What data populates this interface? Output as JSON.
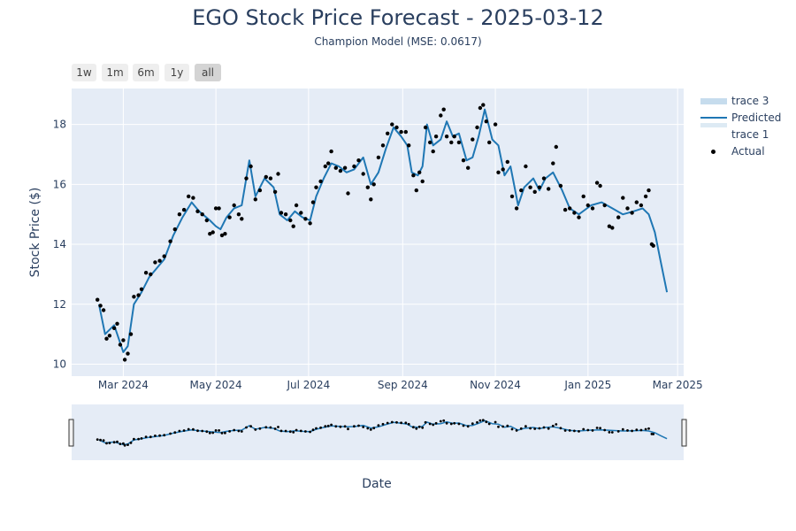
{
  "title": "EGO Stock Price Forecast - 2025-03-12",
  "subtitle": "Champion Model (MSE: 0.0617)",
  "range_buttons": [
    {
      "label": "1w",
      "active": false
    },
    {
      "label": "1m",
      "active": false
    },
    {
      "label": "6m",
      "active": false
    },
    {
      "label": "1y",
      "active": false
    },
    {
      "label": "all",
      "active": true
    }
  ],
  "legend": [
    {
      "label": "trace 3",
      "kind": "band"
    },
    {
      "label": "Predicted",
      "kind": "line"
    },
    {
      "label": "trace 1",
      "kind": "none"
    },
    {
      "label": "Actual",
      "kind": "marker"
    }
  ],
  "colors": {
    "plot_bg": "#e5ecf6",
    "predicted": "#1f77b4",
    "band": "#c6dced",
    "actual": "#000000",
    "grid": "#ffffff"
  },
  "chart_data": {
    "type": "line",
    "title": "EGO Stock Price Forecast - 2025-03-12",
    "xlabel": "Date",
    "ylabel": "Stock Price ($)",
    "xlim": [
      "2024-01-27",
      "2025-03-05"
    ],
    "ylim": [
      9.6,
      19.2
    ],
    "x_ticks": [
      {
        "date": "2024-03-01",
        "label": "Mar 2024"
      },
      {
        "date": "2024-05-01",
        "label": "May 2024"
      },
      {
        "date": "2024-07-01",
        "label": "Jul 2024"
      },
      {
        "date": "2024-09-01",
        "label": "Sep 2024"
      },
      {
        "date": "2024-11-01",
        "label": "Nov 2024"
      },
      {
        "date": "2025-01-01",
        "label": "Jan 2025"
      },
      {
        "date": "2025-03-01",
        "label": "Mar 2025"
      }
    ],
    "y_ticks": [
      10,
      12,
      14,
      16,
      18
    ],
    "grid": true,
    "legend_position": "top-right",
    "rangeslider": true,
    "series": [
      {
        "name": "Predicted",
        "points": [
          [
            "2024-02-14",
            12.0
          ],
          [
            "2024-02-18",
            11.0
          ],
          [
            "2024-02-24",
            11.3
          ],
          [
            "2024-03-01",
            10.4
          ],
          [
            "2024-03-04",
            10.6
          ],
          [
            "2024-03-08",
            12.0
          ],
          [
            "2024-03-13",
            12.4
          ],
          [
            "2024-03-18",
            12.9
          ],
          [
            "2024-03-23",
            13.2
          ],
          [
            "2024-03-28",
            13.5
          ],
          [
            "2024-04-03",
            14.3
          ],
          [
            "2024-04-09",
            14.9
          ],
          [
            "2024-04-15",
            15.4
          ],
          [
            "2024-04-20",
            15.1
          ],
          [
            "2024-04-27",
            14.8
          ],
          [
            "2024-05-01",
            14.6
          ],
          [
            "2024-05-04",
            14.5
          ],
          [
            "2024-05-08",
            14.9
          ],
          [
            "2024-05-13",
            15.2
          ],
          [
            "2024-05-18",
            15.3
          ],
          [
            "2024-05-23",
            16.8
          ],
          [
            "2024-05-27",
            15.6
          ],
          [
            "2024-06-02",
            16.2
          ],
          [
            "2024-06-08",
            15.9
          ],
          [
            "2024-06-12",
            15.0
          ],
          [
            "2024-06-17",
            14.8
          ],
          [
            "2024-06-22",
            15.1
          ],
          [
            "2024-06-27",
            14.9
          ],
          [
            "2024-07-02",
            14.8
          ],
          [
            "2024-07-06",
            15.6
          ],
          [
            "2024-07-11",
            16.2
          ],
          [
            "2024-07-16",
            16.7
          ],
          [
            "2024-07-21",
            16.6
          ],
          [
            "2024-07-26",
            16.4
          ],
          [
            "2024-07-31",
            16.5
          ],
          [
            "2024-08-06",
            16.9
          ],
          [
            "2024-08-11",
            16.0
          ],
          [
            "2024-08-16",
            16.4
          ],
          [
            "2024-08-21",
            17.2
          ],
          [
            "2024-08-26",
            17.9
          ],
          [
            "2024-08-31",
            17.6
          ],
          [
            "2024-09-04",
            17.3
          ],
          [
            "2024-09-07",
            16.4
          ],
          [
            "2024-09-11",
            16.3
          ],
          [
            "2024-09-14",
            16.6
          ],
          [
            "2024-09-17",
            18.0
          ],
          [
            "2024-09-21",
            17.3
          ],
          [
            "2024-09-26",
            17.5
          ],
          [
            "2024-09-30",
            18.1
          ],
          [
            "2024-10-04",
            17.6
          ],
          [
            "2024-10-08",
            17.7
          ],
          [
            "2024-10-13",
            16.8
          ],
          [
            "2024-10-17",
            16.9
          ],
          [
            "2024-10-21",
            17.6
          ],
          [
            "2024-10-25",
            18.5
          ],
          [
            "2024-10-30",
            17.5
          ],
          [
            "2024-11-03",
            17.3
          ],
          [
            "2024-11-07",
            16.3
          ],
          [
            "2024-11-11",
            16.6
          ],
          [
            "2024-11-16",
            15.3
          ],
          [
            "2024-11-20",
            15.9
          ],
          [
            "2024-11-26",
            16.2
          ],
          [
            "2024-11-30",
            15.8
          ],
          [
            "2024-12-04",
            16.2
          ],
          [
            "2024-12-09",
            16.4
          ],
          [
            "2024-12-15",
            15.8
          ],
          [
            "2024-12-20",
            15.2
          ],
          [
            "2024-12-26",
            15.0
          ],
          [
            "2025-01-03",
            15.3
          ],
          [
            "2025-01-10",
            15.4
          ],
          [
            "2025-01-17",
            15.2
          ],
          [
            "2025-01-24",
            15.0
          ],
          [
            "2025-01-31",
            15.1
          ],
          [
            "2025-02-06",
            15.2
          ],
          [
            "2025-02-10",
            15.0
          ],
          [
            "2025-02-14",
            14.4
          ],
          [
            "2025-02-18",
            13.4
          ],
          [
            "2025-02-22",
            12.4
          ]
        ]
      },
      {
        "name": "Actual",
        "points": [
          [
            "2024-02-13",
            12.15
          ],
          [
            "2024-02-15",
            11.95
          ],
          [
            "2024-02-17",
            11.8
          ],
          [
            "2024-02-19",
            10.85
          ],
          [
            "2024-02-21",
            10.95
          ],
          [
            "2024-02-24",
            11.2
          ],
          [
            "2024-02-26",
            11.35
          ],
          [
            "2024-02-28",
            10.65
          ],
          [
            "2024-03-01",
            10.8
          ],
          [
            "2024-03-02",
            10.15
          ],
          [
            "2024-03-04",
            10.35
          ],
          [
            "2024-03-06",
            11.0
          ],
          [
            "2024-03-08",
            12.25
          ],
          [
            "2024-03-11",
            12.3
          ],
          [
            "2024-03-13",
            12.5
          ],
          [
            "2024-03-16",
            13.05
          ],
          [
            "2024-03-19",
            13.0
          ],
          [
            "2024-03-22",
            13.4
          ],
          [
            "2024-03-25",
            13.45
          ],
          [
            "2024-03-28",
            13.6
          ],
          [
            "2024-04-01",
            14.1
          ],
          [
            "2024-04-04",
            14.5
          ],
          [
            "2024-04-07",
            15.0
          ],
          [
            "2024-04-10",
            15.15
          ],
          [
            "2024-04-13",
            15.6
          ],
          [
            "2024-04-16",
            15.55
          ],
          [
            "2024-04-19",
            15.1
          ],
          [
            "2024-04-22",
            15.0
          ],
          [
            "2024-04-25",
            14.8
          ],
          [
            "2024-04-27",
            14.35
          ],
          [
            "2024-04-29",
            14.4
          ],
          [
            "2024-05-01",
            15.2
          ],
          [
            "2024-05-03",
            15.2
          ],
          [
            "2024-05-05",
            14.3
          ],
          [
            "2024-05-07",
            14.35
          ],
          [
            "2024-05-10",
            14.9
          ],
          [
            "2024-05-13",
            15.3
          ],
          [
            "2024-05-16",
            15.0
          ],
          [
            "2024-05-18",
            14.85
          ],
          [
            "2024-05-21",
            16.2
          ],
          [
            "2024-05-24",
            16.6
          ],
          [
            "2024-05-27",
            15.5
          ],
          [
            "2024-05-30",
            15.8
          ],
          [
            "2024-06-03",
            16.25
          ],
          [
            "2024-06-06",
            16.2
          ],
          [
            "2024-06-09",
            15.75
          ],
          [
            "2024-06-11",
            16.35
          ],
          [
            "2024-06-13",
            15.05
          ],
          [
            "2024-06-16",
            15.0
          ],
          [
            "2024-06-19",
            14.8
          ],
          [
            "2024-06-21",
            14.6
          ],
          [
            "2024-06-23",
            15.3
          ],
          [
            "2024-06-26",
            15.05
          ],
          [
            "2024-06-29",
            14.85
          ],
          [
            "2024-07-02",
            14.7
          ],
          [
            "2024-07-04",
            15.4
          ],
          [
            "2024-07-06",
            15.9
          ],
          [
            "2024-07-09",
            16.1
          ],
          [
            "2024-07-12",
            16.6
          ],
          [
            "2024-07-14",
            16.7
          ],
          [
            "2024-07-16",
            17.1
          ],
          [
            "2024-07-19",
            16.55
          ],
          [
            "2024-07-22",
            16.45
          ],
          [
            "2024-07-25",
            16.55
          ],
          [
            "2024-07-27",
            15.7
          ],
          [
            "2024-07-31",
            16.6
          ],
          [
            "2024-08-03",
            16.8
          ],
          [
            "2024-08-06",
            16.35
          ],
          [
            "2024-08-09",
            15.9
          ],
          [
            "2024-08-11",
            15.5
          ],
          [
            "2024-08-13",
            16.0
          ],
          [
            "2024-08-16",
            16.9
          ],
          [
            "2024-08-19",
            17.3
          ],
          [
            "2024-08-22",
            17.7
          ],
          [
            "2024-08-25",
            18.0
          ],
          [
            "2024-08-28",
            17.9
          ],
          [
            "2024-08-31",
            17.75
          ],
          [
            "2024-09-03",
            17.75
          ],
          [
            "2024-09-05",
            17.3
          ],
          [
            "2024-09-08",
            16.3
          ],
          [
            "2024-09-10",
            15.8
          ],
          [
            "2024-09-12",
            16.4
          ],
          [
            "2024-09-14",
            16.1
          ],
          [
            "2024-09-16",
            17.9
          ],
          [
            "2024-09-19",
            17.4
          ],
          [
            "2024-09-21",
            17.1
          ],
          [
            "2024-09-23",
            17.6
          ],
          [
            "2024-09-26",
            18.3
          ],
          [
            "2024-09-28",
            18.5
          ],
          [
            "2024-09-30",
            17.6
          ],
          [
            "2024-10-03",
            17.4
          ],
          [
            "2024-10-05",
            17.6
          ],
          [
            "2024-10-08",
            17.4
          ],
          [
            "2024-10-11",
            16.8
          ],
          [
            "2024-10-14",
            16.55
          ],
          [
            "2024-10-17",
            17.5
          ],
          [
            "2024-10-20",
            17.9
          ],
          [
            "2024-10-22",
            18.55
          ],
          [
            "2024-10-24",
            18.65
          ],
          [
            "2024-10-26",
            18.1
          ],
          [
            "2024-10-28",
            17.4
          ],
          [
            "2024-11-01",
            18.0
          ],
          [
            "2024-11-03",
            16.4
          ],
          [
            "2024-11-06",
            16.5
          ],
          [
            "2024-11-09",
            16.75
          ],
          [
            "2024-11-12",
            15.6
          ],
          [
            "2024-11-15",
            15.2
          ],
          [
            "2024-11-18",
            15.8
          ],
          [
            "2024-11-21",
            16.6
          ],
          [
            "2024-11-24",
            15.9
          ],
          [
            "2024-11-27",
            15.75
          ],
          [
            "2024-11-30",
            15.9
          ],
          [
            "2024-12-03",
            16.2
          ],
          [
            "2024-12-06",
            15.85
          ],
          [
            "2024-12-09",
            16.7
          ],
          [
            "2024-12-11",
            17.25
          ],
          [
            "2024-12-14",
            15.95
          ],
          [
            "2024-12-17",
            15.15
          ],
          [
            "2024-12-20",
            15.2
          ],
          [
            "2024-12-23",
            15.05
          ],
          [
            "2024-12-26",
            14.9
          ],
          [
            "2024-12-29",
            15.6
          ],
          [
            "2025-01-01",
            15.3
          ],
          [
            "2025-01-04",
            15.2
          ],
          [
            "2025-01-07",
            16.05
          ],
          [
            "2025-01-09",
            15.95
          ],
          [
            "2025-01-12",
            15.3
          ],
          [
            "2025-01-15",
            14.6
          ],
          [
            "2025-01-17",
            14.55
          ],
          [
            "2025-01-21",
            14.9
          ],
          [
            "2025-01-24",
            15.55
          ],
          [
            "2025-01-27",
            15.2
          ],
          [
            "2025-01-30",
            15.05
          ],
          [
            "2025-02-02",
            15.4
          ],
          [
            "2025-02-05",
            15.3
          ],
          [
            "2025-02-08",
            15.6
          ],
          [
            "2025-02-10",
            15.8
          ],
          [
            "2025-02-12",
            14.0
          ],
          [
            "2025-02-13",
            13.95
          ]
        ]
      }
    ]
  }
}
